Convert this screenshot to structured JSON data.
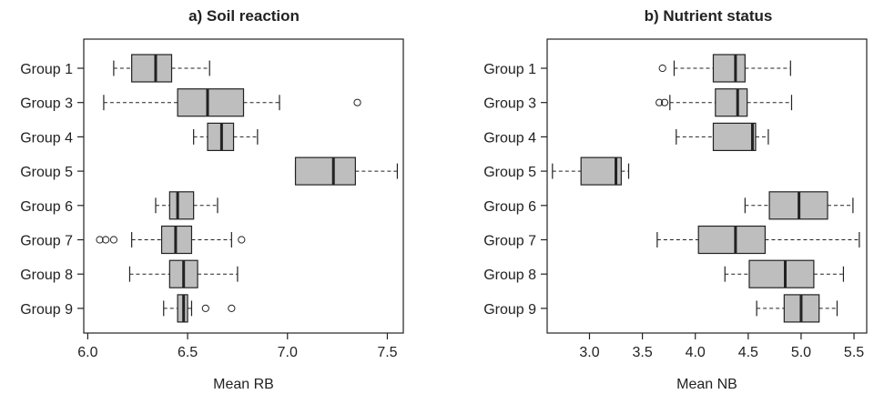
{
  "chart_data": [
    {
      "type": "boxplot",
      "title": "a) Soil reaction",
      "xlabel": "Mean RB",
      "xlim": [
        5.98,
        7.58
      ],
      "xticks": [
        6.0,
        6.5,
        7.0,
        7.5
      ],
      "xtick_labels": [
        "6.0",
        "6.5",
        "7.0",
        "7.5"
      ],
      "groups": [
        {
          "label": "Group 1",
          "whisker_low": 6.13,
          "q1": 6.22,
          "median": 6.34,
          "q3": 6.42,
          "whisker_high": 6.61,
          "outliers": []
        },
        {
          "label": "Group 3",
          "whisker_low": 6.08,
          "q1": 6.45,
          "median": 6.6,
          "q3": 6.78,
          "whisker_high": 6.96,
          "outliers": [
            7.35
          ]
        },
        {
          "label": "Group 4",
          "whisker_low": 6.53,
          "q1": 6.6,
          "median": 6.67,
          "q3": 6.73,
          "whisker_high": 6.85,
          "outliers": []
        },
        {
          "label": "Group 5",
          "whisker_low": 7.04,
          "q1": 7.04,
          "median": 7.23,
          "q3": 7.34,
          "whisker_high": 7.55,
          "outliers": []
        },
        {
          "label": "Group 6",
          "whisker_low": 6.34,
          "q1": 6.41,
          "median": 6.45,
          "q3": 6.53,
          "whisker_high": 6.65,
          "outliers": []
        },
        {
          "label": "Group 7",
          "whisker_low": 6.22,
          "q1": 6.37,
          "median": 6.44,
          "q3": 6.52,
          "whisker_high": 6.72,
          "outliers": [
            6.06,
            6.09,
            6.13,
            6.77
          ]
        },
        {
          "label": "Group 8",
          "whisker_low": 6.21,
          "q1": 6.41,
          "median": 6.48,
          "q3": 6.55,
          "whisker_high": 6.75,
          "outliers": []
        },
        {
          "label": "Group 9",
          "whisker_low": 6.38,
          "q1": 6.45,
          "median": 6.48,
          "q3": 6.5,
          "whisker_high": 6.52,
          "outliers": [
            6.59,
            6.72
          ]
        }
      ]
    },
    {
      "type": "boxplot",
      "title": "b) Nutrient status",
      "xlabel": "Mean NB",
      "xlim": [
        2.6,
        5.62
      ],
      "xticks": [
        3.0,
        3.5,
        4.0,
        4.5,
        5.0,
        5.5
      ],
      "xtick_labels": [
        "3.0",
        "3.5",
        "4.0",
        "4.5",
        "5.0",
        "5.5"
      ],
      "groups": [
        {
          "label": "Group 1",
          "whisker_low": 3.8,
          "q1": 4.17,
          "median": 4.38,
          "q3": 4.47,
          "whisker_high": 4.9,
          "outliers": [
            3.69
          ]
        },
        {
          "label": "Group 3",
          "whisker_low": 3.76,
          "q1": 4.19,
          "median": 4.4,
          "q3": 4.49,
          "whisker_high": 4.91,
          "outliers": [
            3.66,
            3.71
          ]
        },
        {
          "label": "Group 4",
          "whisker_low": 3.82,
          "q1": 4.17,
          "median": 4.54,
          "q3": 4.57,
          "whisker_high": 4.69,
          "outliers": []
        },
        {
          "label": "Group 5",
          "whisker_low": 2.65,
          "q1": 2.92,
          "median": 3.25,
          "q3": 3.3,
          "whisker_high": 3.37,
          "outliers": []
        },
        {
          "label": "Group 6",
          "whisker_low": 4.47,
          "q1": 4.7,
          "median": 4.98,
          "q3": 5.25,
          "whisker_high": 5.49,
          "outliers": []
        },
        {
          "label": "Group 7",
          "whisker_low": 3.64,
          "q1": 4.03,
          "median": 4.38,
          "q3": 4.66,
          "whisker_high": 5.55,
          "outliers": []
        },
        {
          "label": "Group 8",
          "whisker_low": 4.28,
          "q1": 4.51,
          "median": 4.85,
          "q3": 5.12,
          "whisker_high": 5.4,
          "outliers": []
        },
        {
          "label": "Group 9",
          "whisker_low": 4.58,
          "q1": 4.84,
          "median": 5.0,
          "q3": 5.17,
          "whisker_high": 5.34,
          "outliers": []
        }
      ]
    }
  ],
  "colors": {
    "box_fill": "#bebebe",
    "stroke": "#222222"
  }
}
